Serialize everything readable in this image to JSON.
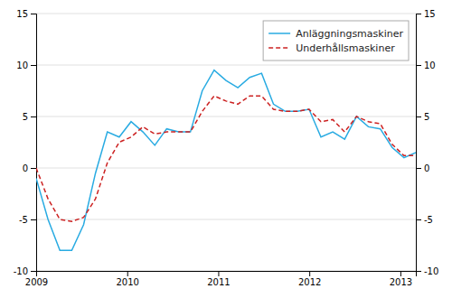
{
  "chart_data": {
    "type": "line",
    "x": [
      2009,
      2009.1303125,
      2009.260625,
      2009.3909375,
      2009.52125,
      2009.6515625,
      2009.781875,
      2009.9121875,
      2010.0425,
      2010.1728125,
      2010.303125,
      2010.4334375,
      2010.56375,
      2010.6940625,
      2010.824375,
      2010.9546875,
      2011.085,
      2011.2153125,
      2011.345625,
      2011.4759375,
      2011.60625,
      2011.7365625,
      2011.866875,
      2011.9971875,
      2012.1275,
      2012.2578125,
      2012.388125,
      2012.5184375,
      2012.64875,
      2012.7790625,
      2012.909375,
      2013.0396875,
      2013.17
    ],
    "series": [
      {
        "name": "Anläggningsmaskiner",
        "color": "#29ABE2",
        "line_style": "solid",
        "values": [
          -1.0,
          -5.0,
          -8.0,
          -8.0,
          -5.5,
          -0.5,
          3.5,
          3.0,
          4.5,
          3.5,
          2.2,
          3.8,
          3.5,
          3.5,
          7.5,
          9.5,
          8.5,
          7.8,
          8.8,
          9.2,
          6.2,
          5.5,
          5.5,
          5.7,
          3.0,
          3.5,
          2.8,
          5.0,
          4.0,
          3.8,
          2.0,
          1.0,
          1.5
        ]
      },
      {
        "name": "Underhållsmaskiner",
        "color": "#CC2222",
        "line_style": "dashed",
        "values": [
          0.0,
          -3.0,
          -5.0,
          -5.2,
          -4.8,
          -3.0,
          0.5,
          2.5,
          3.0,
          4.0,
          3.3,
          3.5,
          3.5,
          3.5,
          5.5,
          7.0,
          6.5,
          6.2,
          7.0,
          7.0,
          5.7,
          5.5,
          5.5,
          5.7,
          4.5,
          4.7,
          3.5,
          5.0,
          4.5,
          4.3,
          2.3,
          1.2,
          1.2
        ]
      }
    ],
    "xlim": [
      2009,
      2013.17
    ],
    "xticks": [
      2009,
      2010,
      2011,
      2012,
      2013
    ],
    "ylim": [
      -10,
      15
    ],
    "yticks": [
      -10,
      -5,
      0,
      5,
      10,
      15
    ],
    "y2lim": [
      -10,
      15
    ],
    "y2ticks": [
      -10,
      -5,
      0,
      5,
      10,
      15
    ],
    "grid": true,
    "legend": "upper right"
  }
}
